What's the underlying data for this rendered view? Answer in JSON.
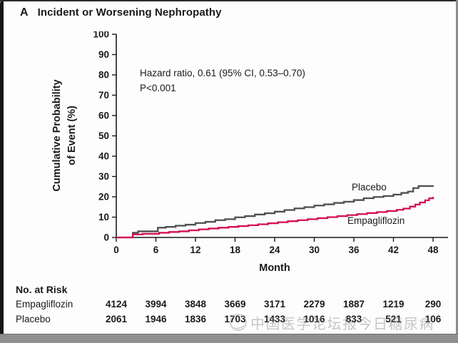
{
  "panel": {
    "letter": "A",
    "title": "Incident or Worsening Nephropathy"
  },
  "annotation": {
    "line1": "Hazard ratio, 0.61 (95% CI, 0.53–0.70)",
    "line2": "P<0.001"
  },
  "axes": {
    "ylabel_line1": "Cumulative Probability",
    "ylabel_line2": "of Event (%)",
    "xlabel": "Month"
  },
  "chart_data": {
    "type": "line",
    "subtype": "kaplan-meier-step",
    "title": "Incident or Worsening Nephropathy",
    "xlabel": "Month",
    "ylabel": "Cumulative Probability of Event (%)",
    "xlim": [
      0,
      48
    ],
    "ylim": [
      0,
      100
    ],
    "x_ticks": [
      0,
      6,
      12,
      18,
      24,
      30,
      36,
      42,
      48
    ],
    "y_ticks": [
      0,
      10,
      20,
      30,
      40,
      50,
      60,
      70,
      80,
      90,
      100
    ],
    "grid": false,
    "legend_position": "inline-labels-right",
    "annotation": "Hazard ratio, 0.61 (95% CI, 0.53–0.70); P<0.001",
    "series": [
      {
        "name": "Placebo",
        "color": "#4f4f51",
        "step": "after",
        "points": [
          [
            0,
            0
          ],
          [
            2.5,
            2.3
          ],
          [
            3.3,
            3.0
          ],
          [
            6.3,
            4.8
          ],
          [
            7.5,
            5.2
          ],
          [
            9,
            5.8
          ],
          [
            10.5,
            6.3
          ],
          [
            12,
            7.1
          ],
          [
            13.5,
            7.7
          ],
          [
            15,
            8.5
          ],
          [
            16.5,
            9.0
          ],
          [
            18,
            9.9
          ],
          [
            19.5,
            10.5
          ],
          [
            21,
            11.3
          ],
          [
            22.5,
            11.9
          ],
          [
            24,
            12.7
          ],
          [
            25.5,
            13.5
          ],
          [
            27,
            14.3
          ],
          [
            28.5,
            14.9
          ],
          [
            30,
            15.7
          ],
          [
            31.5,
            16.3
          ],
          [
            33,
            17.0
          ],
          [
            34.5,
            17.6
          ],
          [
            36,
            18.4
          ],
          [
            37.5,
            19.3
          ],
          [
            39,
            19.9
          ],
          [
            40.5,
            20.4
          ],
          [
            42,
            21.1
          ],
          [
            43.2,
            21.9
          ],
          [
            44.2,
            22.6
          ],
          [
            45,
            24.3
          ],
          [
            45.8,
            25.3
          ],
          [
            48,
            25.6
          ]
        ]
      },
      {
        "name": "Empagliflozin",
        "color": "#d40f4f",
        "step": "after",
        "points": [
          [
            0,
            0
          ],
          [
            2.5,
            1.5
          ],
          [
            4,
            1.8
          ],
          [
            6.5,
            2.3
          ],
          [
            8,
            2.7
          ],
          [
            9.5,
            3.0
          ],
          [
            11,
            3.5
          ],
          [
            12.5,
            4.0
          ],
          [
            14,
            4.4
          ],
          [
            15.5,
            4.8
          ],
          [
            17,
            5.2
          ],
          [
            18.5,
            5.6
          ],
          [
            20,
            6.0
          ],
          [
            21.5,
            6.5
          ],
          [
            23,
            7.0
          ],
          [
            24.5,
            7.5
          ],
          [
            26,
            8.0
          ],
          [
            27.5,
            8.5
          ],
          [
            29,
            9.0
          ],
          [
            30.5,
            9.5
          ],
          [
            32,
            10.0
          ],
          [
            33.5,
            10.5
          ],
          [
            35,
            11.0
          ],
          [
            36.5,
            11.5
          ],
          [
            38,
            12.0
          ],
          [
            39.5,
            12.5
          ],
          [
            41,
            13.0
          ],
          [
            42.5,
            13.6
          ],
          [
            43.5,
            14.2
          ],
          [
            44.5,
            15.2
          ],
          [
            45.3,
            16.2
          ],
          [
            46,
            17.2
          ],
          [
            46.8,
            18.3
          ],
          [
            47.4,
            19.3
          ],
          [
            48,
            20.0
          ]
        ]
      }
    ]
  },
  "risk_table": {
    "header": "No. at Risk",
    "months": [
      0,
      6,
      12,
      18,
      24,
      30,
      36,
      42,
      48
    ],
    "rows": [
      {
        "label": "Empagliflozin",
        "values": [
          "4124",
          "3994",
          "3848",
          "3669",
          "3171",
          "2279",
          "1887",
          "1219",
          "290"
        ]
      },
      {
        "label": "Placebo",
        "values": [
          "2061",
          "1946",
          "1836",
          "1703",
          "1433",
          "1016",
          "833",
          "521",
          "106"
        ]
      }
    ]
  },
  "watermark": {
    "text": "中国医学论坛报今日糖尿病",
    "color": "#8f8f8f"
  },
  "colors": {
    "placebo_curve": "#4f4f51",
    "empagliflozin_curve": "#d40f4f",
    "axis": "#1a1a1a"
  }
}
